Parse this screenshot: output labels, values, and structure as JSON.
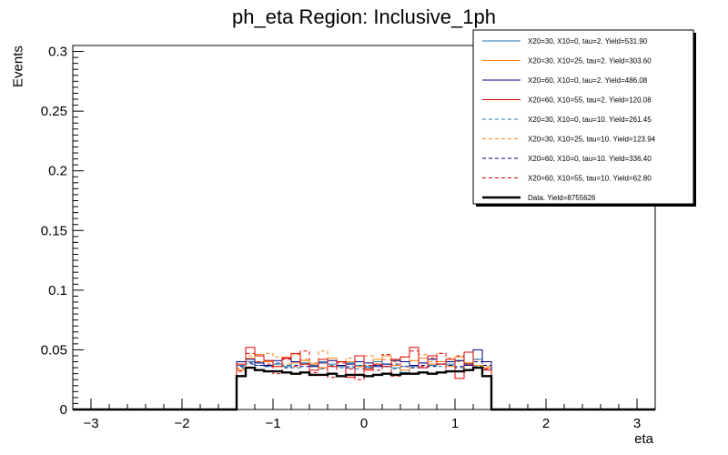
{
  "chart_data": {
    "type": "line",
    "title": "ph_eta Region: Inclusive_1ph",
    "xlabel": "eta",
    "ylabel": "Events",
    "xlim": [
      -3.2,
      3.2
    ],
    "ylim": [
      0,
      0.305
    ],
    "x_ticks": [
      -3,
      -2,
      -1,
      0,
      1,
      2,
      3
    ],
    "x_tick_labels": [
      "−3",
      "−2",
      "−1",
      "0",
      "1",
      "2",
      "3"
    ],
    "y_ticks": [
      0,
      0.05,
      0.1,
      0.15,
      0.2,
      0.25,
      0.3
    ],
    "y_tick_labels": [
      "0",
      "0.05",
      "0.1",
      "0.15",
      "0.2",
      "0.25",
      "0.3"
    ],
    "grid": false,
    "legend_position": "top-right",
    "bin_edges": [
      -1.4,
      -1.3,
      -1.2,
      -1.1,
      -1.0,
      -0.9,
      -0.8,
      -0.7,
      -0.6,
      -0.5,
      -0.4,
      -0.3,
      -0.2,
      -0.1,
      0.0,
      0.1,
      0.2,
      0.3,
      0.4,
      0.5,
      0.6,
      0.7,
      0.8,
      0.9,
      1.0,
      1.1,
      1.2,
      1.3,
      1.4
    ],
    "series": [
      {
        "name": "X20=30, X10=0, tau=2. Yield=531.90",
        "color": "#1f77b4",
        "style": "solid",
        "values": [
          0.037,
          0.04,
          0.039,
          0.041,
          0.038,
          0.036,
          0.04,
          0.039,
          0.037,
          0.04,
          0.038,
          0.036,
          0.039,
          0.037,
          0.036,
          0.04,
          0.038,
          0.035,
          0.031,
          0.036,
          0.039,
          0.037,
          0.04,
          0.038,
          0.041,
          0.039,
          0.042,
          0.04
        ]
      },
      {
        "name": "X20=30, X10=25, tau=2. Yield=303.60",
        "color": "#ff7f0e",
        "style": "solid",
        "values": [
          0.033,
          0.043,
          0.046,
          0.04,
          0.036,
          0.044,
          0.039,
          0.041,
          0.038,
          0.035,
          0.043,
          0.037,
          0.04,
          0.036,
          0.034,
          0.042,
          0.045,
          0.037,
          0.033,
          0.041,
          0.043,
          0.038,
          0.04,
          0.036,
          0.044,
          0.039,
          0.037,
          0.035
        ]
      },
      {
        "name": "X20=60, X10=0, tau=2. Yield=486.08",
        "color": "#000080",
        "style": "solid",
        "values": [
          0.04,
          0.042,
          0.039,
          0.037,
          0.041,
          0.043,
          0.04,
          0.038,
          0.036,
          0.039,
          0.041,
          0.037,
          0.038,
          0.04,
          0.039,
          0.036,
          0.038,
          0.041,
          0.04,
          0.037,
          0.039,
          0.042,
          0.038,
          0.04,
          0.041,
          0.037,
          0.05,
          0.04
        ]
      },
      {
        "name": "X20=60, X10=55, tau=2. Yield=120.08",
        "color": "#e00000",
        "style": "solid",
        "values": [
          0.038,
          0.052,
          0.045,
          0.041,
          0.036,
          0.043,
          0.047,
          0.038,
          0.033,
          0.042,
          0.036,
          0.04,
          0.027,
          0.045,
          0.033,
          0.038,
          0.036,
          0.042,
          0.044,
          0.052,
          0.035,
          0.045,
          0.038,
          0.042,
          0.026,
          0.048,
          0.035,
          0.033
        ]
      },
      {
        "name": "X20=30, X10=0, tau=10. Yield=261.45",
        "color": "#1f77b4",
        "style": "dashed",
        "values": [
          0.035,
          0.038,
          0.037,
          0.036,
          0.039,
          0.037,
          0.035,
          0.038,
          0.036,
          0.034,
          0.037,
          0.035,
          0.036,
          0.034,
          0.035,
          0.037,
          0.036,
          0.034,
          0.036,
          0.037,
          0.035,
          0.038,
          0.036,
          0.037,
          0.035,
          0.038,
          0.036,
          0.034
        ]
      },
      {
        "name": "X20=30, X10=25, tau=10. Yield=123.94",
        "color": "#ff7f0e",
        "style": "dashed",
        "values": [
          0.034,
          0.045,
          0.04,
          0.047,
          0.044,
          0.038,
          0.046,
          0.042,
          0.039,
          0.049,
          0.041,
          0.036,
          0.043,
          0.04,
          0.045,
          0.038,
          0.042,
          0.04,
          0.044,
          0.041,
          0.046,
          0.04,
          0.047,
          0.043,
          0.04,
          0.038,
          0.042,
          0.036
        ]
      },
      {
        "name": "X20=60, X10=0, tau=10. Yield=336.40",
        "color": "#000080",
        "style": "dashed",
        "values": [
          0.036,
          0.039,
          0.037,
          0.036,
          0.038,
          0.035,
          0.037,
          0.036,
          0.038,
          0.035,
          0.036,
          0.037,
          0.035,
          0.036,
          0.035,
          0.037,
          0.036,
          0.038,
          0.036,
          0.035,
          0.037,
          0.036,
          0.038,
          0.037,
          0.036,
          0.038,
          0.04,
          0.037
        ]
      },
      {
        "name": "X20=60, X10=55, tau=10. Yield=62.80",
        "color": "#e00000",
        "style": "dashed",
        "values": [
          0.032,
          0.047,
          0.04,
          0.038,
          0.03,
          0.042,
          0.036,
          0.049,
          0.031,
          0.035,
          0.027,
          0.039,
          0.034,
          0.025,
          0.037,
          0.033,
          0.046,
          0.028,
          0.04,
          0.049,
          0.036,
          0.043,
          0.047,
          0.032,
          0.045,
          0.038,
          0.042,
          0.034
        ]
      },
      {
        "name": "Data. Yield=8755626",
        "color": "#000000",
        "style": "data",
        "values": [
          0.028,
          0.035,
          0.033,
          0.032,
          0.032,
          0.031,
          0.03,
          0.031,
          0.029,
          0.029,
          0.03,
          0.028,
          0.029,
          0.029,
          0.028,
          0.029,
          0.03,
          0.029,
          0.03,
          0.03,
          0.031,
          0.03,
          0.031,
          0.032,
          0.032,
          0.033,
          0.035,
          0.028
        ]
      }
    ]
  }
}
